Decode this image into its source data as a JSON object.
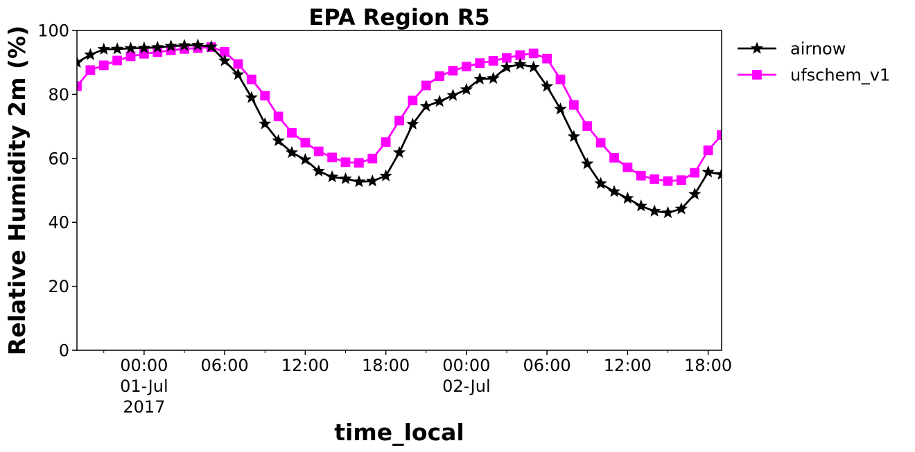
{
  "chart_data": {
    "type": "line",
    "title": "EPA Region R5",
    "xlabel": "time_local",
    "ylabel": "Relative Humidity 2m (%)",
    "ylim": [
      0,
      100
    ],
    "yticks": [
      "0",
      "20",
      "40",
      "60",
      "80",
      "100"
    ],
    "xlim_hours": [
      -5,
      43
    ],
    "xticks": [
      {
        "hour": 0,
        "lines": [
          "00:00",
          "01-Jul",
          "2017"
        ]
      },
      {
        "hour": 6,
        "lines": [
          "06:00"
        ]
      },
      {
        "hour": 12,
        "lines": [
          "12:00"
        ]
      },
      {
        "hour": 18,
        "lines": [
          "18:00"
        ]
      },
      {
        "hour": 24,
        "lines": [
          "00:00",
          "02-Jul"
        ]
      },
      {
        "hour": 30,
        "lines": [
          "06:00"
        ]
      },
      {
        "hour": 36,
        "lines": [
          "12:00"
        ]
      },
      {
        "hour": 42,
        "lines": [
          "18:00"
        ]
      }
    ],
    "x_hours": [
      -5,
      -4,
      -3,
      -2,
      -1,
      0,
      1,
      2,
      3,
      4,
      5,
      6,
      7,
      8,
      9,
      10,
      11,
      12,
      13,
      14,
      15,
      16,
      17,
      18,
      19,
      20,
      21,
      22,
      23,
      24,
      25,
      26,
      27,
      28,
      29,
      30,
      31,
      32,
      33,
      34,
      35,
      36,
      37,
      38,
      39,
      40,
      41,
      42,
      43
    ],
    "legend_position": "outside-right-top",
    "series": [
      {
        "name": "airnow",
        "color": "#000000",
        "marker": "star",
        "values": [
          90.0,
          92.4,
          94.1,
          94.2,
          94.4,
          94.5,
          94.7,
          95.1,
          95.3,
          95.4,
          94.9,
          90.5,
          86.2,
          79.0,
          70.8,
          65.5,
          61.8,
          59.6,
          56.0,
          54.2,
          53.6,
          52.7,
          52.9,
          54.5,
          61.8,
          70.7,
          76.3,
          77.8,
          79.7,
          81.5,
          84.8,
          85.0,
          88.5,
          89.4,
          88.5,
          82.5,
          75.4,
          66.8,
          58.3,
          52.1,
          49.6,
          47.5,
          45.1,
          43.5,
          43.0,
          44.2,
          48.8,
          55.7,
          55.0
        ]
      },
      {
        "name": "ufschem_v1",
        "color": "#ff00ff",
        "marker": "square",
        "values": [
          82.6,
          87.6,
          89.1,
          90.6,
          91.9,
          92.7,
          93.2,
          93.8,
          94.2,
          94.5,
          94.8,
          93.3,
          89.5,
          84.7,
          79.6,
          73.1,
          68.0,
          64.9,
          62.2,
          60.3,
          58.8,
          58.6,
          59.9,
          65.1,
          71.8,
          78.1,
          82.8,
          85.7,
          87.4,
          88.7,
          89.8,
          90.5,
          91.4,
          92.3,
          92.8,
          91.2,
          84.7,
          76.7,
          70.1,
          64.9,
          60.2,
          57.2,
          54.6,
          53.5,
          52.9,
          53.2,
          55.5,
          62.5,
          67.3
        ]
      }
    ]
  }
}
